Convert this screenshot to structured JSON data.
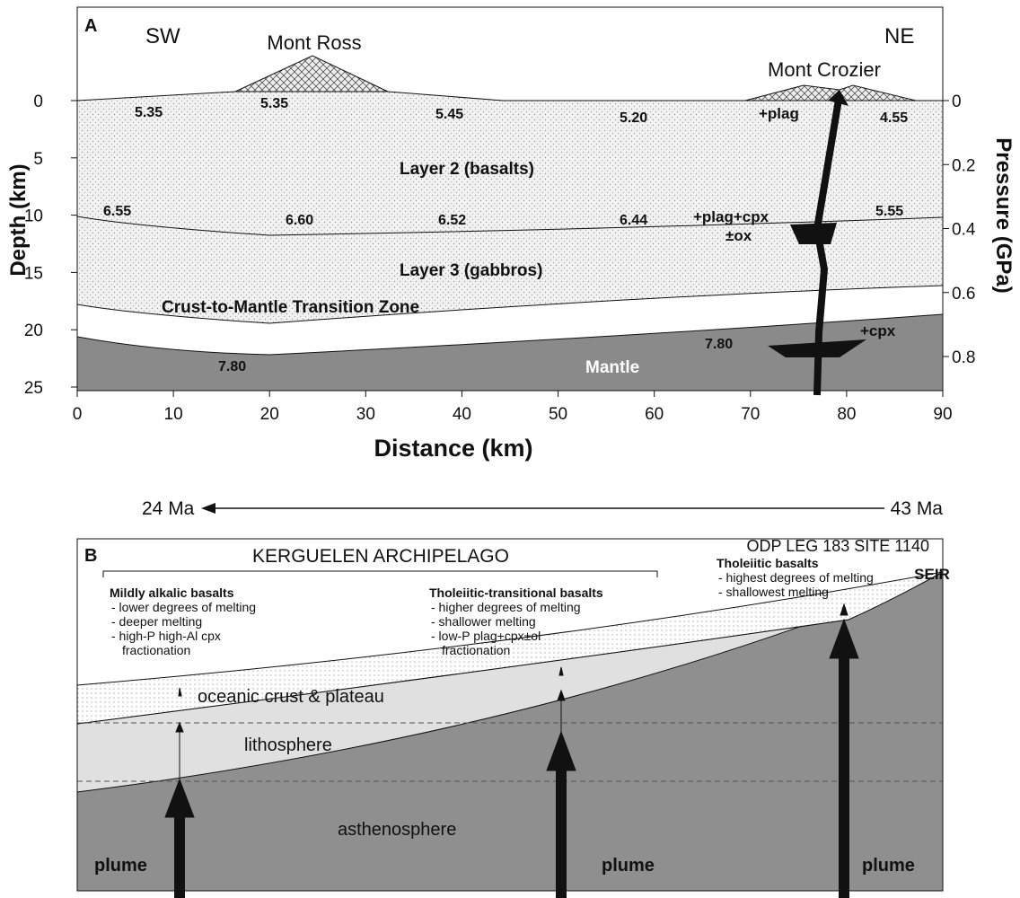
{
  "panel_a": {
    "label": "A",
    "left_direction": "SW",
    "right_direction": "NE",
    "peaks": [
      "Mont Ross",
      "Mont Crozier"
    ],
    "velocities": [
      "5.35",
      "5.35",
      "5.45",
      "5.20",
      "4.55",
      "6.55",
      "6.60",
      "6.52",
      "6.44",
      "5.55",
      "7.80",
      "7.80"
    ],
    "layers": [
      "Layer 2 (basalts)",
      "Layer 3 (gabbros)",
      "Crust-to-Mantle Transition Zone",
      "Mantle"
    ],
    "phases": [
      "+plag",
      "+plag+cpx",
      "±ox",
      "+cpx"
    ],
    "x_axis": {
      "title": "Distance (km)",
      "ticks": [
        0,
        10,
        20,
        30,
        40,
        50,
        60,
        70,
        80,
        90
      ]
    },
    "y_axis": {
      "title": "Depth (km)",
      "ticks": [
        0,
        5,
        10,
        15,
        20,
        25
      ]
    },
    "y2_axis": {
      "title": "Pressure (GPa)",
      "ticks": [
        0,
        0.2,
        0.4,
        0.6,
        0.8
      ]
    }
  },
  "panel_b": {
    "label": "B",
    "time_start": "24 Ma",
    "time_end": "43 Ma",
    "region": "KERGUELEN ARCHIPELAGO",
    "site": "ODP LEG 183 SITE 1140",
    "ridge": "SEIR",
    "groups": [
      {
        "title": "Mildly alkalic basalts",
        "lines": [
          "- lower degrees of melting",
          "- deeper melting",
          "- high-P high-Al cpx",
          "fractionation"
        ]
      },
      {
        "title": "Tholeiitic-transitional basalts",
        "lines": [
          "- higher degrees of melting",
          "- shallower melting",
          "- low-P plag+cpx±ol",
          "fractionation"
        ]
      },
      {
        "title": "Tholeiitic basalts",
        "lines": [
          "- highest degrees of melting",
          "- shallowest melting"
        ]
      }
    ],
    "layers": [
      "oceanic crust & plateau",
      "lithosphere",
      "asthenosphere"
    ],
    "plume_labels": [
      "plume",
      "plume",
      "plume"
    ]
  }
}
